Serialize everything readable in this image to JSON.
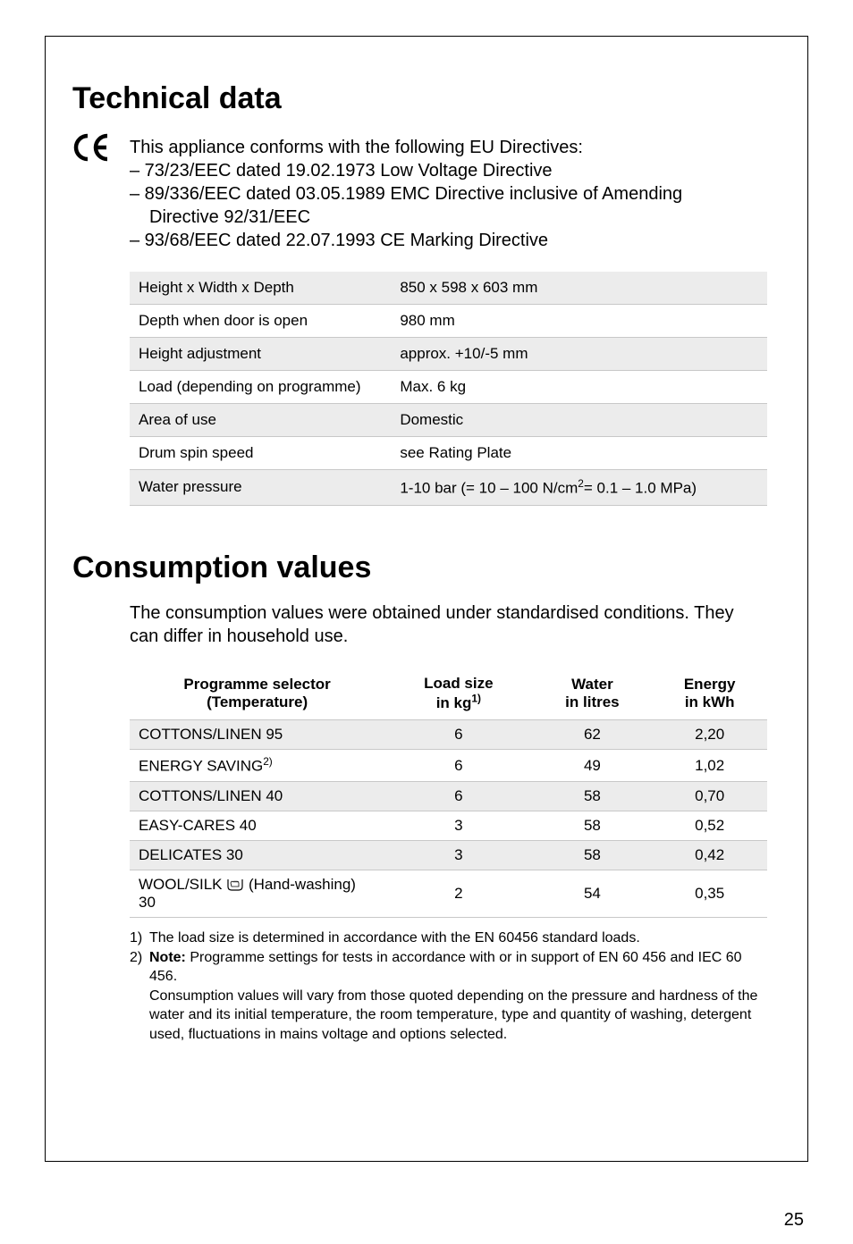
{
  "headings": {
    "technical": "Technical data",
    "consumption": "Consumption values"
  },
  "ce": {
    "mark": "CE",
    "intro": "This appliance conforms with the following EU Directives:",
    "lines": [
      "– 73/23/EEC dated 19.02.1973 Low Voltage Directive",
      "– 89/336/EEC dated 03.05.1989 EMC Directive inclusive of Amending",
      "Directive 92/31/EEC",
      "– 93/68/EEC dated 22.07.1993 CE Marking Directive"
    ]
  },
  "tech_table": {
    "rows": [
      {
        "label": "Height x Width x Depth",
        "value": "850 x 598 x 603 mm"
      },
      {
        "label": "Depth when door is open",
        "value": "980 mm"
      },
      {
        "label": "Height adjustment",
        "value": "approx. +10/-5 mm"
      },
      {
        "label": "Load (depending on programme)",
        "value": "Max. 6 kg"
      },
      {
        "label": "Area of use",
        "value": "Domestic"
      },
      {
        "label": "Drum spin speed",
        "value": "see Rating Plate"
      },
      {
        "label": "Water pressure",
        "value_html": "1-10 bar (= 10 – 100 N/cm<sup>2</sup>= 0.1 – 1.0 MPa)"
      }
    ]
  },
  "consumption_intro": "The consumption values were obtained under standardised conditions. They can differ in household use.",
  "cons_table": {
    "headers": {
      "programme_l1": "Programme selector",
      "programme_l2": "(Temperature)",
      "load_l1": "Load size",
      "load_l2_html": "in kg<sup>1)</sup>",
      "water_l1": "Water",
      "water_l2": "in litres",
      "energy_l1": "Energy",
      "energy_l2": "in kWh"
    },
    "rows": [
      {
        "prog": "COTTONS/LINEN 95",
        "load": "6",
        "water": "62",
        "energy": "2,20"
      },
      {
        "prog_html": "ENERGY SAVING<sup>2)</sup>",
        "load": "6",
        "water": "49",
        "energy": "1,02"
      },
      {
        "prog": "COTTONS/LINEN 40",
        "load": "6",
        "water": "58",
        "energy": "0,70"
      },
      {
        "prog": "EASY-CARES 40",
        "load": "3",
        "water": "58",
        "energy": "0,52"
      },
      {
        "prog": "DELICATES 30",
        "load": "3",
        "water": "58",
        "energy": "0,42"
      },
      {
        "prog_pre": "WOOL/SILK ",
        "prog_post": " (Hand-washing) 30",
        "icon": "hand",
        "load": "2",
        "water": "54",
        "energy": "0,35"
      }
    ]
  },
  "footnotes": {
    "fn1_num": "1)",
    "fn1_txt": "The load size is determined in accordance with the EN 60456 standard loads.",
    "fn2_num": "2)",
    "fn2_txt_html": "<b>Note:</b> Programme settings for tests in accordance with or in support of EN 60 456 and IEC 60 456.",
    "cont": "Consumption values will vary from those quoted depending on the pressure and hardness of the water and its initial temperature, the room temperature, type and quantity of washing, detergent used, fluctuations in mains voltage and options selected."
  },
  "page_number": "25",
  "colors": {
    "row_shade": "#ececec",
    "border": "#c8c8c8",
    "text": "#000000",
    "background": "#ffffff"
  },
  "fonts": {
    "h1_size_pt": 26,
    "body_size_pt": 15,
    "table_size_pt": 13,
    "footnote_size_pt": 12
  }
}
